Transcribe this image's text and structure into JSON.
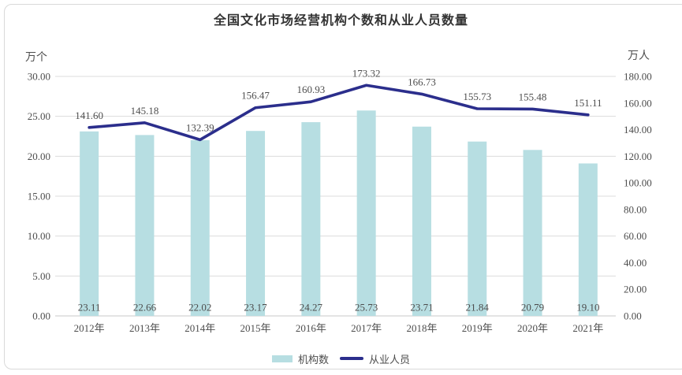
{
  "chart_data": {
    "type": "combo",
    "title": "全国文化市场经营机构个数和从业人员数量",
    "categories": [
      "2012年",
      "2013年",
      "2014年",
      "2015年",
      "2016年",
      "2017年",
      "2018年",
      "2019年",
      "2020年",
      "2021年"
    ],
    "series": [
      {
        "name": "机构数",
        "type": "bar",
        "axis": "left",
        "color": "#B7DEE2",
        "values": [
          23.11,
          22.66,
          22.02,
          23.17,
          24.27,
          25.73,
          23.71,
          21.84,
          20.79,
          19.1
        ],
        "labels": [
          "23.11",
          "22.66",
          "22.02",
          "23.17",
          "24.27",
          "25.73",
          "23.71",
          "21.84",
          "20.79",
          "19.10"
        ]
      },
      {
        "name": "从业人员",
        "type": "line",
        "axis": "right",
        "color": "#2B2E8C",
        "values": [
          141.6,
          145.18,
          132.39,
          156.47,
          160.93,
          173.32,
          166.73,
          155.73,
          155.48,
          151.11
        ],
        "labels": [
          "141.60",
          "145.18",
          "132.39",
          "156.47",
          "160.93",
          "173.32",
          "166.73",
          "155.73",
          "155.48",
          "151.11"
        ]
      }
    ],
    "left_axis": {
      "unit_label": "万个",
      "min": 0,
      "max": 30,
      "step": 5,
      "ticks": [
        "30.00",
        "25.00",
        "20.00",
        "15.00",
        "10.00",
        "5.00",
        "0.00"
      ]
    },
    "right_axis": {
      "unit_label": "万人",
      "min": 0,
      "max": 180,
      "step": 20,
      "ticks": [
        "180.00",
        "160.00",
        "140.00",
        "120.00",
        "100.00",
        "80.00",
        "60.00",
        "40.00",
        "20.00",
        "0.00"
      ]
    },
    "grid": true,
    "legend_position": "bottom",
    "data_labels": true,
    "colors": {
      "grid": "#DCDCDC",
      "axis": "#C9C9C9",
      "text": "#4D4D4D",
      "title": "#333333",
      "background": "#FFFFFF",
      "card_border": "#D9D9D9"
    }
  }
}
